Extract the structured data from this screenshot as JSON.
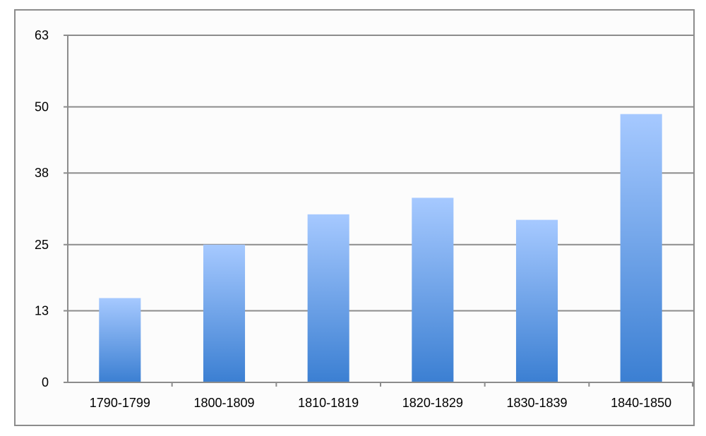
{
  "chart_data": {
    "type": "bar",
    "title": "",
    "xlabel": "",
    "ylabel": "",
    "categories": [
      "1790-1799",
      "1800-1809",
      "1810-1819",
      "1820-1829",
      "1830-1839",
      "1840-1850"
    ],
    "series": [
      {
        "values": [
          15.3,
          25.0,
          30.5,
          33.5,
          29.5,
          48.7
        ]
      }
    ],
    "ylim": [
      0,
      63
    ],
    "yticks": [
      0,
      13,
      25,
      38,
      50,
      63
    ],
    "ytick_labels": [
      "0",
      "13",
      "25",
      "38",
      "50",
      "63"
    ],
    "grid": true,
    "legend": "none",
    "colors": {
      "bar_top": "#a6c9ff",
      "bar_bottom": "#3b7fd2",
      "grid": "#8c8c8c",
      "axis": "#8c8c8c"
    }
  }
}
